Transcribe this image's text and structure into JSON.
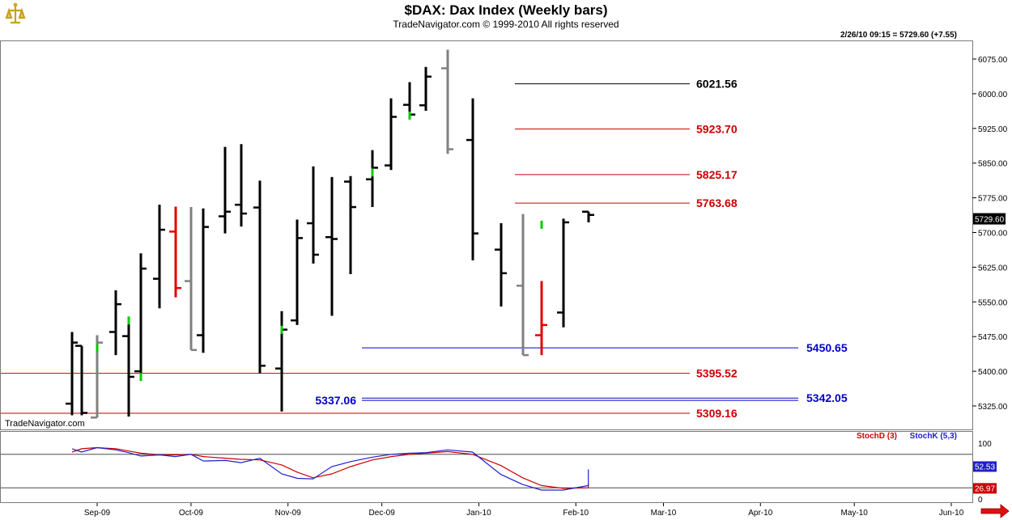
{
  "header": {
    "title": "$DAX:  Dax Index  (Weekly bars)",
    "subtitle": "TradeNavigator.com © 1999-2010 All rights reserved",
    "stamp": "2/26/10 09:15 = 5729.60 (+7.55)",
    "watermark": "TradeNavigator.com"
  },
  "colors": {
    "bar_up": "#000000",
    "bar_alt_gray": "#808080",
    "bar_red": "#e00000",
    "tick_green": "#00cc00",
    "level_red": "#cc0000",
    "level_black": "#000000",
    "level_blue": "#0000cc",
    "stoch_d": "#cc0000",
    "stoch_k": "#2020cc"
  },
  "chart_data": [
    {
      "type": "ohlc",
      "title": "$DAX:  Dax Index  (Weekly bars)",
      "ylim": [
        5305,
        6110
      ],
      "y_ticks": [
        "6075.00",
        "6000.00",
        "5925.00",
        "5850.00",
        "5775.00",
        "5700.00",
        "5625.00",
        "5550.00",
        "5475.00",
        "5400.00",
        "5325.00"
      ],
      "y_tick_values": [
        6075,
        6000,
        5925,
        5850,
        5775,
        5700,
        5625,
        5550,
        5475,
        5400,
        5325
      ],
      "x_ticks": [
        "Sep-09",
        "Oct-09",
        "Nov-09",
        "Dec-09",
        "Jan-10",
        "Feb-10",
        "Mar-10",
        "Apr-10",
        "May-10",
        "Jun-10"
      ],
      "last_price_label": "5729.60",
      "last_price": 5729.6,
      "bars": [
        {
          "date": "2009-08-24",
          "open": 5330,
          "high": 5485,
          "low": 5305,
          "close": 5462,
          "color": "black"
        },
        {
          "date": "2009-08-27",
          "open": 5455,
          "high": 5455,
          "low": 5305,
          "close": 5310,
          "color": "black"
        },
        {
          "date": "2009-09-01",
          "open": 5300,
          "high": 5478,
          "low": 5300,
          "close": 5462,
          "color": "gray"
        },
        {
          "date": "2009-09-07",
          "open": 5485,
          "high": 5575,
          "low": 5435,
          "close": 5545,
          "color": "black"
        },
        {
          "date": "2009-09-11",
          "open": 5476,
          "high": 5515,
          "low": 5302,
          "close": 5388,
          "color": "black"
        },
        {
          "date": "2009-09-15",
          "open": 5400,
          "high": 5655,
          "low": 5393,
          "close": 5622,
          "color": "black"
        },
        {
          "date": "2009-09-21",
          "open": 5600,
          "high": 5760,
          "low": 5536,
          "close": 5706,
          "color": "black"
        },
        {
          "date": "2009-09-26",
          "open": 5702,
          "high": 5756,
          "low": 5560,
          "close": 5580,
          "color": "red"
        },
        {
          "date": "2009-10-01",
          "open": 5595,
          "high": 5755,
          "low": 5446,
          "close": 5446,
          "color": "gray"
        },
        {
          "date": "2009-10-05",
          "open": 5478,
          "high": 5752,
          "low": 5440,
          "close": 5712,
          "color": "black"
        },
        {
          "date": "2009-10-12",
          "open": 5735,
          "high": 5885,
          "low": 5698,
          "close": 5745,
          "color": "black"
        },
        {
          "date": "2009-10-17",
          "open": 5760,
          "high": 5891,
          "low": 5713,
          "close": 5741,
          "color": "black"
        },
        {
          "date": "2009-10-23",
          "open": 5754,
          "high": 5812,
          "low": 5396,
          "close": 5412,
          "color": "black"
        },
        {
          "date": "2009-10-30",
          "open": 5406,
          "high": 5530,
          "low": 5313,
          "close": 5490,
          "color": "black"
        },
        {
          "date": "2009-11-04",
          "open": 5510,
          "high": 5728,
          "low": 5500,
          "close": 5688,
          "color": "black"
        },
        {
          "date": "2009-11-09",
          "open": 5720,
          "high": 5843,
          "low": 5633,
          "close": 5652,
          "color": "black"
        },
        {
          "date": "2009-11-15",
          "open": 5690,
          "high": 5820,
          "low": 5520,
          "close": 5686,
          "color": "black"
        },
        {
          "date": "2009-11-21",
          "open": 5810,
          "high": 5822,
          "low": 5610,
          "close": 5755,
          "color": "black"
        },
        {
          "date": "2009-11-28",
          "open": 5815,
          "high": 5878,
          "low": 5755,
          "close": 5840,
          "color": "black"
        },
        {
          "date": "2009-12-04",
          "open": 5845,
          "high": 5990,
          "low": 5835,
          "close": 5950,
          "color": "black"
        },
        {
          "date": "2009-12-10",
          "open": 5976,
          "high": 6025,
          "low": 5953,
          "close": 5955,
          "color": "black"
        },
        {
          "date": "2009-12-15",
          "open": 5975,
          "high": 6058,
          "low": 5963,
          "close": 6037,
          "color": "black"
        },
        {
          "date": "2009-12-22",
          "open": 6055,
          "high": 6095,
          "low": 5870,
          "close": 5880,
          "color": "gray"
        },
        {
          "date": "2009-12-30",
          "open": 5900,
          "high": 5990,
          "low": 5640,
          "close": 5698,
          "color": "black"
        },
        {
          "date": "2010-01-08",
          "open": 5663,
          "high": 5720,
          "low": 5540,
          "close": 5612,
          "color": "black"
        },
        {
          "date": "2010-01-15",
          "open": 5585,
          "high": 5740,
          "low": 5435,
          "close": 5435,
          "color": "gray"
        },
        {
          "date": "2010-01-21",
          "open": 5478,
          "high": 5595,
          "low": 5435,
          "close": 5500,
          "color": "red"
        },
        {
          "date": "2010-01-28",
          "open": 5527,
          "high": 5730,
          "low": 5495,
          "close": 5722,
          "color": "black"
        },
        {
          "date": "2010-02-05",
          "open": 5745,
          "high": 5745,
          "low": 5722,
          "close": 5738,
          "color": "black"
        }
      ],
      "levels": [
        {
          "label": "6021.56",
          "value": 6021.56,
          "color": "black"
        },
        {
          "label": "5923.70",
          "value": 5923.7,
          "color": "red"
        },
        {
          "label": "5825.17",
          "value": 5825.17,
          "color": "red"
        },
        {
          "label": "5763.68",
          "value": 5763.68,
          "color": "red"
        },
        {
          "label": "5450.65",
          "value": 5450.65,
          "color": "blue"
        },
        {
          "label": "5395.52",
          "value": 5395.52,
          "color": "red"
        },
        {
          "label": "5342.05",
          "value": 5342.05,
          "color": "blue"
        },
        {
          "label": "5337.06",
          "value": 5337.06,
          "color": "blue"
        },
        {
          "label": "5309.16",
          "value": 5309.16,
          "color": "red"
        }
      ]
    },
    {
      "type": "line",
      "title": "",
      "ylim": [
        0,
        120
      ],
      "y_ticks": [
        "100",
        "0"
      ],
      "y_tick_values": [
        100,
        0
      ],
      "guide_levels": [
        80,
        20
      ],
      "series": [
        {
          "name": "StochD (3)",
          "last_label": "26.97",
          "values": [
            84,
            90,
            92,
            90,
            86,
            82,
            79,
            79,
            80,
            76,
            73,
            71,
            70,
            61,
            48,
            38,
            45,
            58,
            70,
            76,
            80,
            82,
            85,
            80,
            60,
            38,
            24,
            19,
            20,
            27
          ]
        },
        {
          "name": "StochK (5,3)",
          "last_label": "52.53",
          "values": [
            90,
            84,
            92,
            88,
            83,
            77,
            79,
            76,
            80,
            68,
            69,
            65,
            73,
            45,
            37,
            36,
            58,
            67,
            75,
            80,
            82,
            83,
            88,
            84,
            44,
            26,
            16,
            16,
            24,
            53
          ]
        }
      ]
    }
  ]
}
